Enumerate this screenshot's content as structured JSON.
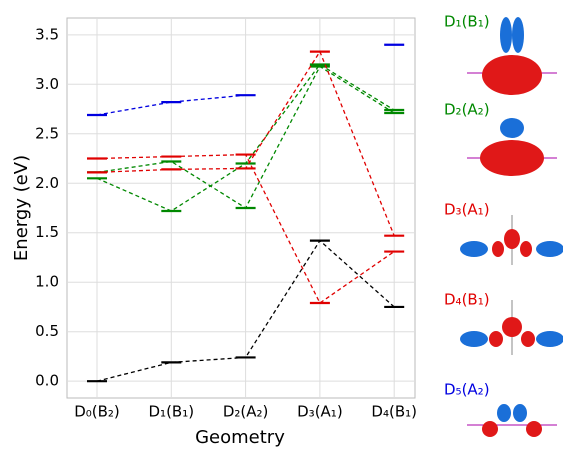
{
  "chart_data": {
    "type": "levels",
    "x_label": "Geometry",
    "y_label": "Energy (eV)",
    "categories": [
      "D₀(B₂)",
      "D₁(B₁)",
      "D₂(A₂)",
      "D₃(A₁)",
      "D₄(B₁)"
    ],
    "category_colors": [
      "#000000",
      "#008800",
      "#008800",
      "#e00000",
      "#e00000"
    ],
    "ylim": [
      -0.17,
      3.67
    ],
    "yticks": [
      {
        "value": 0,
        "label": "0.0"
      },
      {
        "value": 0.5,
        "label": "0.5"
      },
      {
        "value": 1,
        "label": "1.0"
      },
      {
        "value": 1.5,
        "label": "1.5"
      },
      {
        "value": 2,
        "label": "2.0"
      },
      {
        "value": 2.5,
        "label": "2.5"
      },
      {
        "value": 3,
        "label": "3.0"
      },
      {
        "value": 3.5,
        "label": "3.5"
      }
    ],
    "grid": true,
    "series": [
      {
        "color": "#000000",
        "values": [
          0.0,
          0.19,
          0.24,
          1.42,
          0.75
        ]
      },
      {
        "color": "#008800",
        "values": [
          2.05,
          1.72,
          2.2,
          3.2,
          2.74
        ]
      },
      {
        "color": "#008800",
        "values": [
          2.11,
          2.22,
          1.75,
          3.18,
          2.71
        ]
      },
      {
        "color": "#e00000",
        "values": [
          2.11,
          2.14,
          2.15,
          3.33,
          1.47
        ]
      },
      {
        "color": "#e00000",
        "values": [
          2.25,
          2.27,
          2.29,
          0.79,
          1.31
        ]
      },
      {
        "color": "#0000e0",
        "values": [
          2.69,
          2.82,
          2.89,
          null,
          3.4
        ]
      }
    ],
    "annotations": [
      {
        "text": "D₁(B₁)",
        "color": "#008800"
      },
      {
        "text": "D₂(A₂)",
        "color": "#008800"
      },
      {
        "text": "D₃(A₁)",
        "color": "#e00000"
      },
      {
        "text": "D₄(B₁)",
        "color": "#e00000"
      },
      {
        "text": "D₅(A₂)",
        "color": "#0000e0"
      }
    ]
  }
}
